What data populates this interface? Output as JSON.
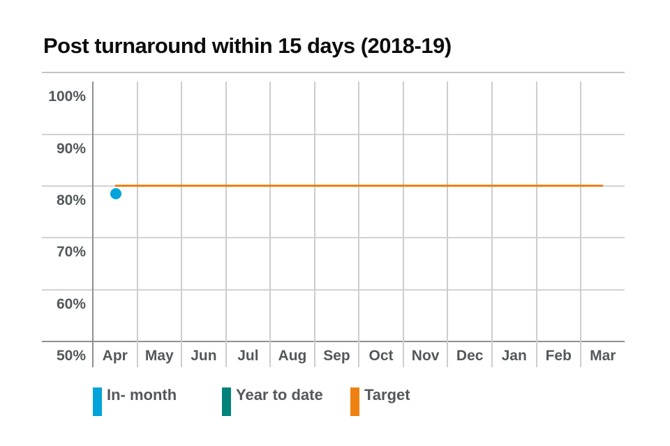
{
  "title": "Post turnaround within 15 days (2018-19)",
  "y_axis": {
    "labels": [
      "100%",
      "90%",
      "80%",
      "70%",
      "60%",
      "50%"
    ],
    "values": [
      100,
      90,
      80,
      70,
      60,
      50
    ]
  },
  "x_axis": {
    "labels": [
      "Apr",
      "May",
      "Jun",
      "Jul",
      "Aug",
      "Sep",
      "Oct",
      "Nov",
      "Dec",
      "Jan",
      "Feb",
      "Mar"
    ]
  },
  "legend": [
    {
      "label": "In- month",
      "color": "#00a3da"
    },
    {
      "label": "Year to date",
      "color": "#00837b"
    },
    {
      "label": "Target",
      "color": "#ee8111"
    }
  ],
  "colors": {
    "in_month": "#00a3da",
    "year_to_date": "#00837b",
    "target": "#ee8111",
    "grid_light": "#d2d2d2",
    "grid_vertical": "#cdcdcd",
    "axis_dark": "#8f8f8f",
    "top_border": "#c4c4c4",
    "label_text": "#54585a",
    "title_text": "#0b0c0c"
  },
  "chart_data": {
    "type": "line",
    "title": "Post turnaround within 15 days (2018-19)",
    "categories": [
      "Apr",
      "May",
      "Jun",
      "Jul",
      "Aug",
      "Sep",
      "Oct",
      "Nov",
      "Dec",
      "Jan",
      "Feb",
      "Mar"
    ],
    "series": [
      {
        "name": "In- month",
        "color": "#00a3da",
        "style": "point",
        "values": [
          78.5,
          null,
          null,
          null,
          null,
          null,
          null,
          null,
          null,
          null,
          null,
          null
        ]
      },
      {
        "name": "Year to date",
        "color": "#00837b",
        "style": "point",
        "values": [
          null,
          null,
          null,
          null,
          null,
          null,
          null,
          null,
          null,
          null,
          null,
          null
        ]
      },
      {
        "name": "Target",
        "color": "#ee8111",
        "style": "line",
        "values": [
          80,
          80,
          80,
          80,
          80,
          80,
          80,
          80,
          80,
          80,
          80,
          80
        ]
      }
    ],
    "xlabel": "",
    "ylabel": "",
    "ylim": [
      50,
      102
    ],
    "yticks": [
      50,
      60,
      70,
      80,
      90,
      100
    ],
    "grid": true,
    "legend_position": "bottom"
  }
}
